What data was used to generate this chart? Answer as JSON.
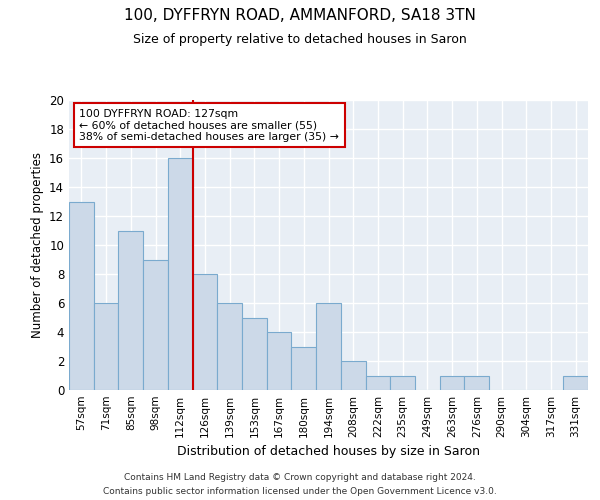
{
  "title1": "100, DYFFRYN ROAD, AMMANFORD, SA18 3TN",
  "title2": "Size of property relative to detached houses in Saron",
  "xlabel": "Distribution of detached houses by size in Saron",
  "ylabel": "Number of detached properties",
  "categories": [
    "57sqm",
    "71sqm",
    "85sqm",
    "98sqm",
    "112sqm",
    "126sqm",
    "139sqm",
    "153sqm",
    "167sqm",
    "180sqm",
    "194sqm",
    "208sqm",
    "222sqm",
    "235sqm",
    "249sqm",
    "263sqm",
    "276sqm",
    "290sqm",
    "304sqm",
    "317sqm",
    "331sqm"
  ],
  "values": [
    13,
    6,
    11,
    9,
    16,
    8,
    6,
    5,
    4,
    3,
    6,
    2,
    1,
    1,
    0,
    1,
    1,
    0,
    0,
    0,
    1
  ],
  "bar_color": "#ccd9e8",
  "bar_edge_color": "#7aaace",
  "vline_color": "#cc0000",
  "annotation_title": "100 DYFFRYN ROAD: 127sqm",
  "annotation_line1": "← 60% of detached houses are smaller (55)",
  "annotation_line2": "38% of semi-detached houses are larger (35) →",
  "annotation_box_edgecolor": "#cc0000",
  "ylim": [
    0,
    20
  ],
  "yticks": [
    0,
    2,
    4,
    6,
    8,
    10,
    12,
    14,
    16,
    18,
    20
  ],
  "footnote1": "Contains HM Land Registry data © Crown copyright and database right 2024.",
  "footnote2": "Contains public sector information licensed under the Open Government Licence v3.0.",
  "bg_color": "#ffffff",
  "plot_bg_color": "#e8eef5"
}
